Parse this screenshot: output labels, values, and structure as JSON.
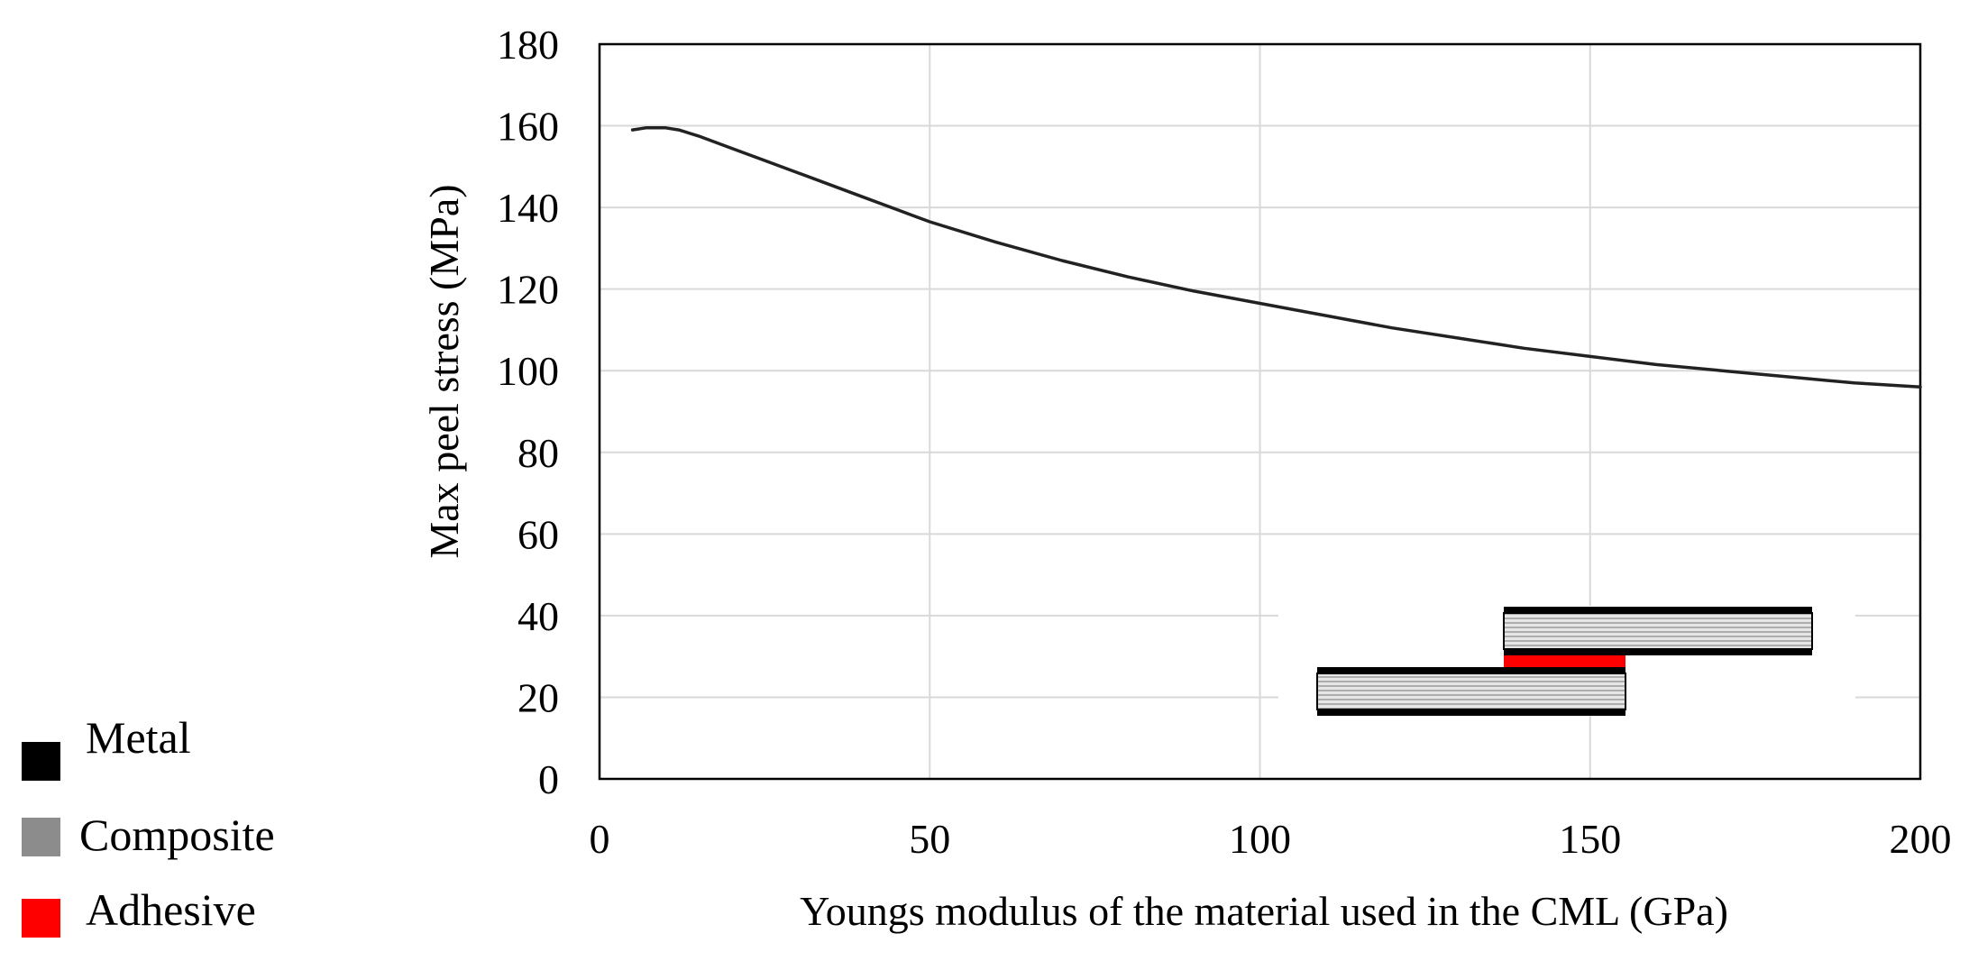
{
  "chart_data": {
    "type": "line",
    "title": "",
    "xlabel": "Youngs modulus of the material used in the CML (GPa)",
    "ylabel": "Max peel stress (MPa)",
    "xlim": [
      0,
      200
    ],
    "ylim": [
      0,
      180
    ],
    "x_ticks": [
      0,
      50,
      100,
      150,
      200
    ],
    "y_ticks": [
      0,
      20,
      40,
      60,
      80,
      100,
      120,
      140,
      160,
      180
    ],
    "grid": true,
    "series": [
      {
        "x": [
          5,
          7,
          10,
          12,
          15,
          20,
          25,
          30,
          35,
          40,
          45,
          50,
          60,
          70,
          80,
          90,
          100,
          110,
          120,
          130,
          140,
          150,
          160,
          170,
          180,
          190,
          200
        ],
        "y": [
          159,
          159.5,
          159.5,
          159,
          157.5,
          154.5,
          151.5,
          148.5,
          145.5,
          142.5,
          139.5,
          136.5,
          131.5,
          127,
          123,
          119.5,
          116.5,
          113.5,
          110.5,
          108,
          105.5,
          103.5,
          101.5,
          100,
          98.5,
          97,
          96
        ]
      }
    ],
    "colors": {
      "line": "#222222",
      "grid": "#d9d9d9",
      "metal": "#000000",
      "composite": "#8c8c8c",
      "adhesive": "#ff0000"
    }
  },
  "legend": {
    "items": [
      {
        "label": "Metal",
        "color": "#000000"
      },
      {
        "label": "Composite",
        "color": "#8c8c8c"
      },
      {
        "label": "Adhesive",
        "color": "#ff0000"
      }
    ]
  }
}
